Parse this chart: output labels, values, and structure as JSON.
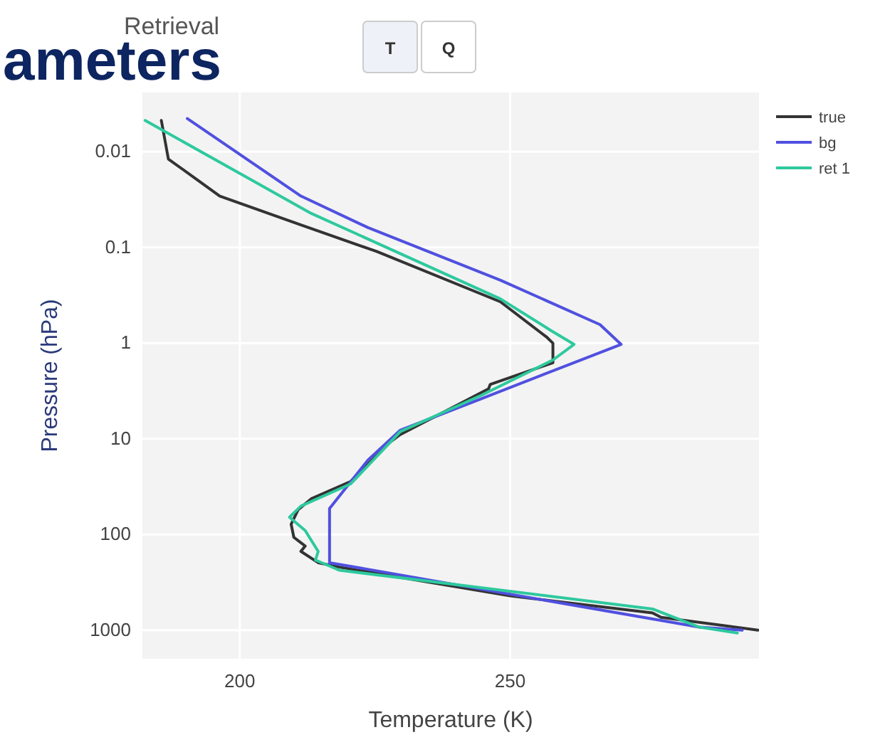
{
  "chart_data": {
    "type": "line",
    "xlabel": "Temperature (K)",
    "ylabel": "Pressure (hPa)",
    "log": "y",
    "grid": true,
    "legend": "top right",
    "line_style": "solid",
    "marker": "none",
    "xlim": [
      182,
      296
    ],
    "xticks": [
      200,
      250
    ],
    "ylim": [
      1990,
      0.0024
    ],
    "yticks": [
      0.01,
      0.1,
      1,
      10,
      100,
      1000
    ],
    "annotations": [
      "Retrieval",
      "ameters",
      "T",
      "Q"
    ],
    "series": [
      {
        "name": "true",
        "color": "#333333",
        "x": [
          185.5,
          186.8,
          196.3,
          211.3,
          225.3,
          248.2,
          256.8,
          257.9,
          257.9,
          246.3,
          246,
          229.7,
          227.9,
          220.5,
          213.2,
          210.8,
          209.5,
          210,
          212.1,
          211.3,
          214.5,
          218.4,
          250,
          276.3,
          277.9,
          295.8
        ],
        "values": [
          0.0047,
          0.0119,
          0.029,
          0.058,
          0.11,
          0.37,
          0.87,
          1.0,
          1.6,
          2.7,
          3.0,
          9.0,
          10.7,
          27.9,
          42.4,
          55,
          78,
          107,
          132,
          150,
          197,
          219,
          437,
          659,
          733,
          1000
        ]
      },
      {
        "name": "bg",
        "color": "#5050e0",
        "x": [
          190.3,
          211.3,
          223.7,
          248.2,
          266.6,
          270.5,
          244.7,
          229.7,
          223.7,
          216.6,
          216.6,
          285,
          292.9
        ],
        "values": [
          0.0045,
          0.029,
          0.062,
          0.22,
          0.64,
          1.03,
          3.8,
          8.1,
          16.7,
          53.5,
          197,
          930,
          1000
        ]
      },
      {
        "name": "ret 1",
        "color": "#2ec99e",
        "x": [
          182.5,
          213.2,
          248.2,
          257.4,
          261.8,
          257.9,
          244.7,
          229.7,
          220.5,
          211.3,
          209.2,
          212.1,
          214.5,
          214,
          218.4,
          276.3,
          285,
          292
        ],
        "values": [
          0.0047,
          0.044,
          0.345,
          0.73,
          1.03,
          1.5,
          3.5,
          8.4,
          29.6,
          50.5,
          66,
          91,
          150,
          185,
          236,
          600,
          930,
          1070
        ]
      }
    ]
  }
}
